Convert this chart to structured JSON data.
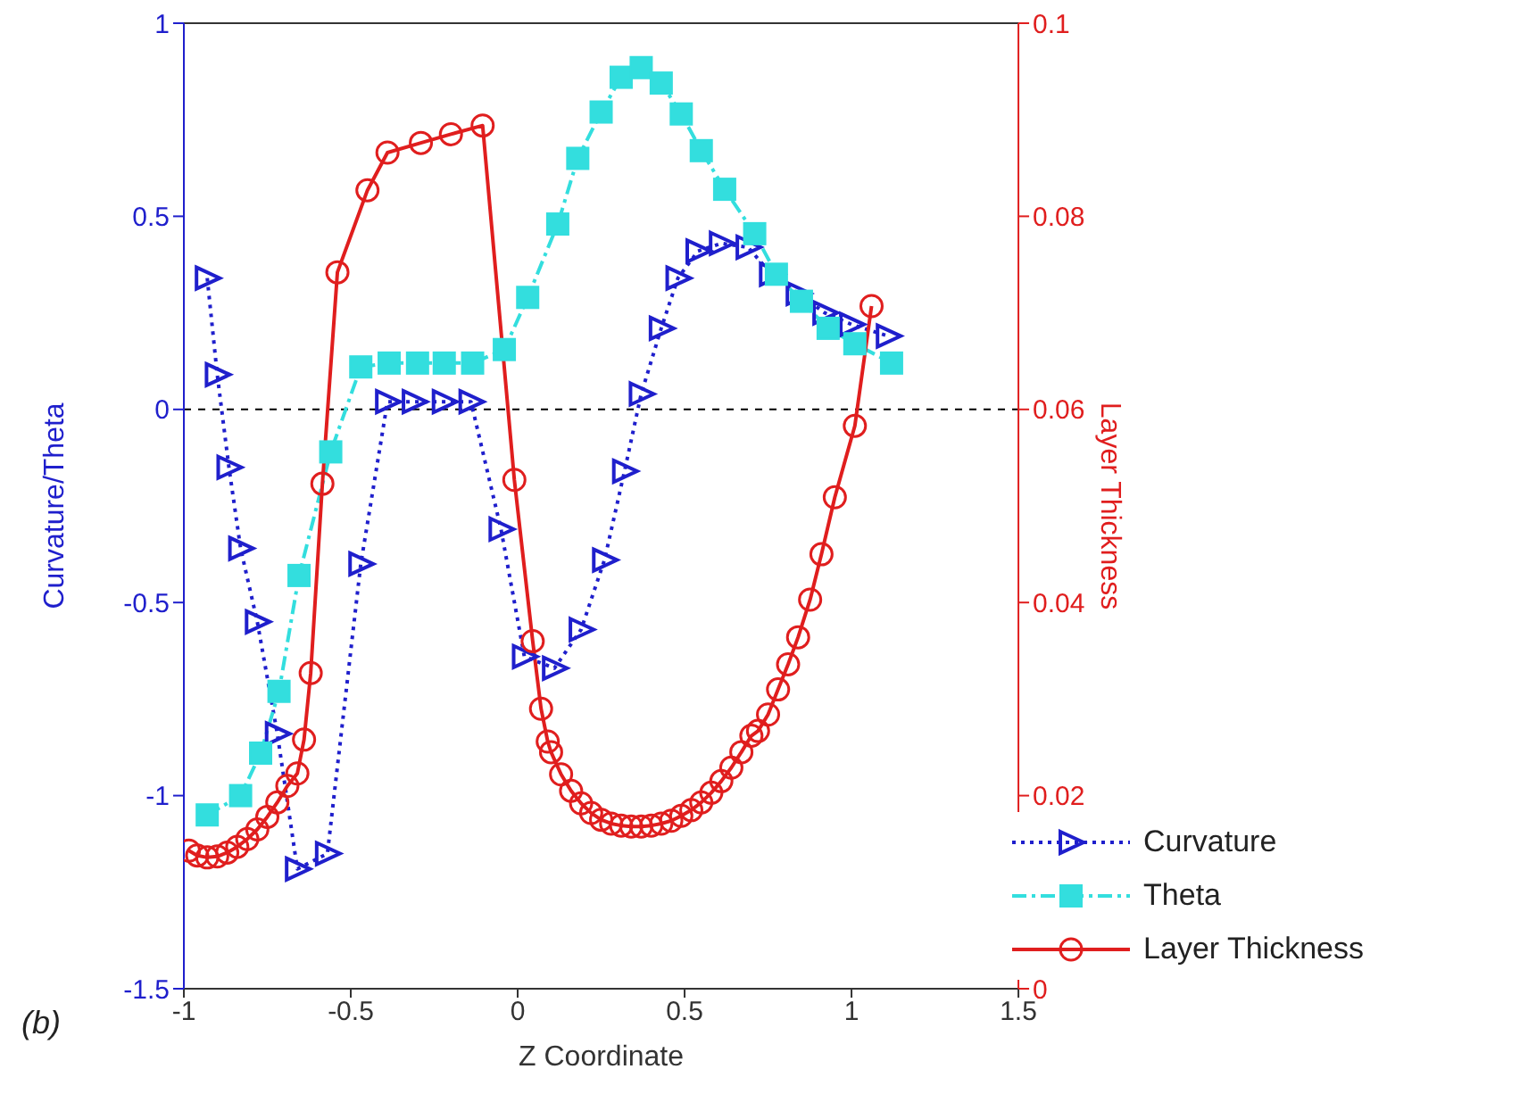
{
  "chart_data": {
    "type": "line",
    "xlabel": "Z Coordinate",
    "ylabel": "Curvature/Theta",
    "y2label": "Layer Thickness",
    "annotations": [
      "(b)"
    ],
    "xlim": [
      -1,
      1.5
    ],
    "xticks": [
      -1,
      -0.5,
      0,
      0.5,
      1,
      1.5
    ],
    "ylim": [
      -1.5,
      1
    ],
    "yticks": [
      -1.5,
      -1,
      -0.5,
      0,
      0.5,
      1
    ],
    "y2lim": [
      0,
      0.1
    ],
    "y2ticks": [
      0,
      0.02,
      0.04,
      0.06,
      0.08,
      0.1
    ],
    "legend": "bottom right",
    "ref_lines": [
      {
        "axis": "y",
        "value": 0,
        "color": "#000000",
        "line_style": "dashed"
      }
    ],
    "series": [
      {
        "name": "Curvature",
        "color": "#1f1fcc",
        "marker": "triangle",
        "line_style": "dotted",
        "x": [
          -0.93,
          -0.9,
          -0.865,
          -0.83,
          -0.78,
          -0.72,
          -0.66,
          -0.57,
          -0.47,
          -0.39,
          -0.31,
          -0.22,
          -0.14,
          -0.05,
          0.02,
          0.11,
          0.19,
          0.26,
          0.32,
          0.37,
          0.43,
          0.48,
          0.54,
          0.61,
          0.69,
          0.76,
          0.84,
          0.92,
          1.0,
          1.11
        ],
        "values": [
          0.34,
          0.09,
          -0.15,
          -0.36,
          -0.55,
          -0.84,
          -1.19,
          -1.15,
          -0.4,
          0.02,
          0.02,
          0.02,
          0.02,
          -0.31,
          -0.64,
          -0.67,
          -0.57,
          -0.39,
          -0.16,
          0.04,
          0.21,
          0.34,
          0.41,
          0.43,
          0.42,
          0.35,
          0.3,
          0.25,
          0.22,
          0.19
        ]
      },
      {
        "name": "Theta",
        "color": "#33dede",
        "marker": "square",
        "line_style": "dashed",
        "x": [
          -0.93,
          -0.83,
          -0.77,
          -0.715,
          -0.655,
          -0.56,
          -0.47,
          -0.385,
          -0.3,
          -0.22,
          -0.135,
          -0.04,
          0.03,
          0.12,
          0.18,
          0.25,
          0.31,
          0.37,
          0.43,
          0.49,
          0.55,
          0.62,
          0.71,
          0.775,
          0.85,
          0.93,
          1.01,
          1.12
        ],
        "values": [
          -1.05,
          -1.0,
          -0.89,
          -0.73,
          -0.43,
          -0.11,
          0.11,
          0.12,
          0.12,
          0.12,
          0.12,
          0.155,
          0.29,
          0.48,
          0.65,
          0.77,
          0.86,
          0.885,
          0.845,
          0.765,
          0.67,
          0.57,
          0.455,
          0.35,
          0.28,
          0.21,
          0.17,
          0.12
        ]
      },
      {
        "name": "Layer Thickness",
        "color": "#e01e1e",
        "marker": "circle",
        "line_style": "solid",
        "axis": "y2",
        "x": [
          -0.985,
          -0.96,
          -0.93,
          -0.9,
          -0.87,
          -0.84,
          -0.81,
          -0.78,
          -0.75,
          -0.72,
          -0.69,
          -0.66,
          -0.64,
          -0.62,
          -0.585,
          -0.54,
          -0.45,
          -0.39,
          -0.29,
          -0.2,
          -0.105,
          -0.01,
          0.045,
          0.07,
          0.09,
          0.1,
          0.13,
          0.16,
          0.19,
          0.22,
          0.25,
          0.28,
          0.31,
          0.34,
          0.37,
          0.4,
          0.43,
          0.46,
          0.49,
          0.52,
          0.55,
          0.58,
          0.61,
          0.64,
          0.67,
          0.7,
          0.72,
          0.75,
          0.78,
          0.81,
          0.84,
          0.876,
          0.91,
          0.95,
          1.01,
          1.06
        ],
        "values": [
          0.0143,
          0.0138,
          0.0136,
          0.0137,
          0.0141,
          0.0147,
          0.0155,
          0.0165,
          0.0178,
          0.0193,
          0.021,
          0.0223,
          0.0258,
          0.0327,
          0.0523,
          0.0742,
          0.0827,
          0.0866,
          0.0876,
          0.0885,
          0.0894,
          0.0527,
          0.036,
          0.029,
          0.0256,
          0.0245,
          0.0222,
          0.0205,
          0.0192,
          0.0182,
          0.0175,
          0.0171,
          0.0169,
          0.0168,
          0.0168,
          0.0169,
          0.0171,
          0.0174,
          0.0179,
          0.0185,
          0.0193,
          0.0203,
          0.0215,
          0.0229,
          0.0245,
          0.0262,
          0.0267,
          0.0284,
          0.031,
          0.0336,
          0.0364,
          0.0403,
          0.045,
          0.0509,
          0.0583,
          0.0707
        ]
      }
    ]
  }
}
